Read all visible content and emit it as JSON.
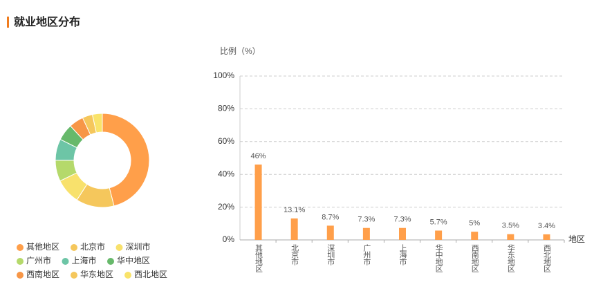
{
  "header": {
    "title": "就业地区分布"
  },
  "chart_data": [
    {
      "type": "pie",
      "categories": [
        "其他地区",
        "北京市",
        "深圳市",
        "广州市",
        "上海市",
        "华中地区",
        "西南地区",
        "华东地区",
        "西北地区"
      ],
      "values": [
        46,
        13.1,
        8.7,
        7.3,
        7.3,
        5.7,
        5,
        3.5,
        3.4
      ],
      "colors": [
        "#ff9f4a",
        "#f5c75c",
        "#f8e16c",
        "#b5d96b",
        "#6dc5a6",
        "#67b96b",
        "#f79647",
        "#f5c75c",
        "#f9e36a"
      ],
      "donut": true
    },
    {
      "type": "bar",
      "y_label": "比例（%）",
      "x_label": "地区",
      "categories": [
        "其他地区",
        "北京市",
        "深圳市",
        "广州市",
        "上海市",
        "华中地区",
        "西南地区",
        "华东地区",
        "西北地区"
      ],
      "values": [
        46,
        13.1,
        8.7,
        7.3,
        7.3,
        5.7,
        5,
        3.5,
        3.4
      ],
      "value_labels": [
        "46%",
        "13.1%",
        "8.7%",
        "7.3%",
        "7.3%",
        "5.7%",
        "5%",
        "3.5%",
        "3.4%"
      ],
      "color": "#ff9f4a",
      "ylim": [
        0,
        100
      ],
      "yticks": [
        {
          "value": 0,
          "label": "0%"
        },
        {
          "value": 20,
          "label": "20%"
        },
        {
          "value": 40,
          "label": "40%"
        },
        {
          "value": 60,
          "label": "60%"
        },
        {
          "value": 80,
          "label": "80%"
        },
        {
          "value": 100,
          "label": "100%"
        }
      ],
      "grid": true
    }
  ]
}
